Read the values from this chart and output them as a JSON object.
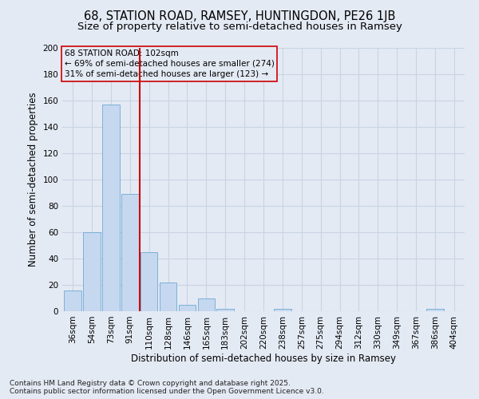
{
  "title_line1": "68, STATION ROAD, RAMSEY, HUNTINGDON, PE26 1JB",
  "title_line2": "Size of property relative to semi-detached houses in Ramsey",
  "xlabel": "Distribution of semi-detached houses by size in Ramsey",
  "ylabel": "Number of semi-detached properties",
  "categories": [
    "36sqm",
    "54sqm",
    "73sqm",
    "91sqm",
    "110sqm",
    "128sqm",
    "146sqm",
    "165sqm",
    "183sqm",
    "202sqm",
    "220sqm",
    "238sqm",
    "257sqm",
    "275sqm",
    "294sqm",
    "312sqm",
    "330sqm",
    "349sqm",
    "367sqm",
    "386sqm",
    "404sqm"
  ],
  "values": [
    16,
    60,
    157,
    89,
    45,
    22,
    5,
    10,
    2,
    0,
    0,
    2,
    0,
    0,
    0,
    0,
    0,
    0,
    0,
    2,
    0
  ],
  "bar_color": "#c5d8ef",
  "bar_edge_color": "#6fa8d4",
  "grid_color": "#c8d4e3",
  "background_color": "#e4eaf4",
  "vline_color": "#cc0000",
  "annotation_box_color": "#cc0000",
  "annotation_text": "68 STATION ROAD: 102sqm\n← 69% of semi-detached houses are smaller (274)\n31% of semi-detached houses are larger (123) →",
  "footnote_line1": "Contains HM Land Registry data © Crown copyright and database right 2025.",
  "footnote_line2": "Contains public sector information licensed under the Open Government Licence v3.0.",
  "ylim": [
    0,
    200
  ],
  "yticks": [
    0,
    20,
    40,
    60,
    80,
    100,
    120,
    140,
    160,
    180,
    200
  ],
  "vline_x_index": 3.5,
  "title_fontsize": 10.5,
  "subtitle_fontsize": 9.5,
  "axis_label_fontsize": 8.5,
  "tick_fontsize": 7.5,
  "annotation_fontsize": 7.5,
  "footnote_fontsize": 6.5
}
